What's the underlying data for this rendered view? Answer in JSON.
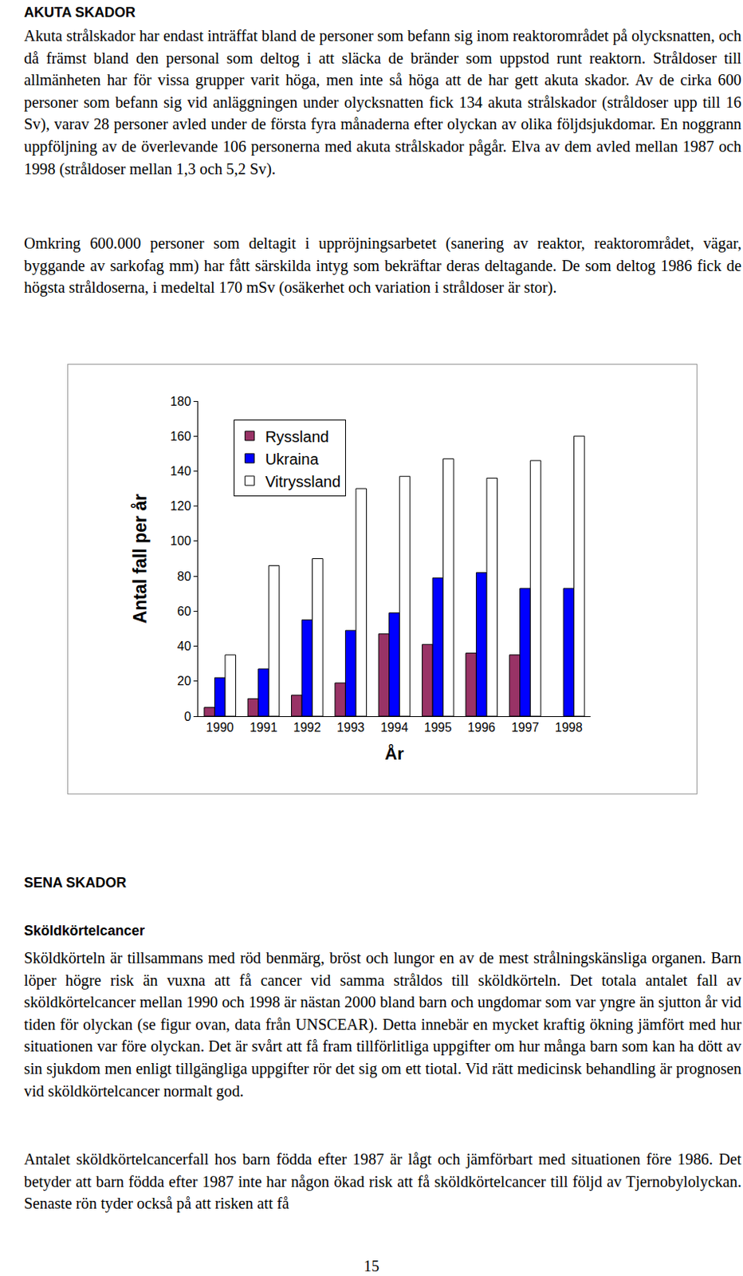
{
  "sections": [
    {
      "heading": "AKUTA SKADOR",
      "paragraphs": [
        "Akuta strålskador har endast inträffat bland de personer som befann sig inom reaktorområdet på olycksnatten, och då främst bland den personal som deltog i att släcka de bränder som uppstod runt reaktorn. Stråldoser till allmänheten har för vissa grupper varit höga, men inte så höga att de har gett akuta skador. Av de cirka 600 personer som befann sig vid anläggningen under olycksnatten fick 134 akuta strålskador (stråldoser upp till 16 Sv), varav 28 personer avled under de första fyra månaderna efter olyckan av olika följdsjukdomar. En noggrann uppföljning av de överlevande 106 personerna med akuta strålskador pågår. Elva av dem avled mellan 1987 och 1998 (stråldoser mellan 1,3 och 5,2 Sv).",
        "Omkring 600.000 personer som deltagit i uppröjningsarbetet (sanering av reaktor, reaktorområdet, vägar, byggande av sarkofag mm) har fått särskilda intyg som bekräftar deras deltagande. De som deltog 1986 fick de högsta stråldoserna, i medeltal 170 mSv (osäkerhet och variation i stråldoser är stor)."
      ]
    },
    {
      "heading": "SENA SKADOR",
      "subheading": "Sköldkörtelcancer",
      "paragraphs": [
        "Sköldkörteln är tillsammans med röd benmärg, bröst och lungor en av de mest strålningskänsliga organen. Barn löper högre risk än vuxna att få cancer vid samma stråldos till sköldkörteln. Det totala antalet fall av sköldkörtelcancer mellan 1990 och 1998 är nästan 2000 bland barn och ungdomar som var yngre än sjutton år vid tiden för olyckan (se figur ovan, data från UNSCEAR). Detta innebär en mycket kraftig ökning jämfört med hur situationen var före olyckan. Det är svårt att få fram tillförlitliga uppgifter om hur många barn som kan ha dött av sin sjukdom men enligt tillgängliga uppgifter rör det sig om ett tiotal. Vid rätt medicinsk behandling är prognosen vid sköldkörtelcancer normalt god.",
        "Antalet sköldkörtelcancerfall hos barn födda efter 1987 är lågt och jämförbart med situationen före 1986. Det betyder att barn födda efter 1987 inte har någon ökad risk att få sköldkörtelcancer till följd av Tjernobylolyckan. Senaste rön tyder också på att risken att få"
      ]
    }
  ],
  "chart_data": {
    "type": "bar",
    "x_label": "År",
    "y_label": "Antal fall per år",
    "categories": [
      "1990",
      "1991",
      "1992",
      "1993",
      "1994",
      "1995",
      "1996",
      "1997",
      "1998"
    ],
    "series": [
      {
        "name": "Ryssland",
        "color": "#993366",
        "values": [
          5,
          10,
          12,
          19,
          47,
          41,
          36,
          35,
          null
        ]
      },
      {
        "name": "Ukraina",
        "color": "#0000ff",
        "values": [
          22,
          27,
          55,
          49,
          59,
          79,
          82,
          73,
          73
        ]
      },
      {
        "name": "Vitryssland",
        "color": "#ffffff",
        "values": [
          35,
          86,
          90,
          130,
          137,
          147,
          136,
          146,
          160
        ]
      }
    ],
    "ylim": [
      0,
      180
    ],
    "yticks": [
      0,
      20,
      40,
      60,
      80,
      100,
      120,
      140,
      160,
      180
    ],
    "grid": false,
    "legend": "top left"
  },
  "page_number": "15"
}
